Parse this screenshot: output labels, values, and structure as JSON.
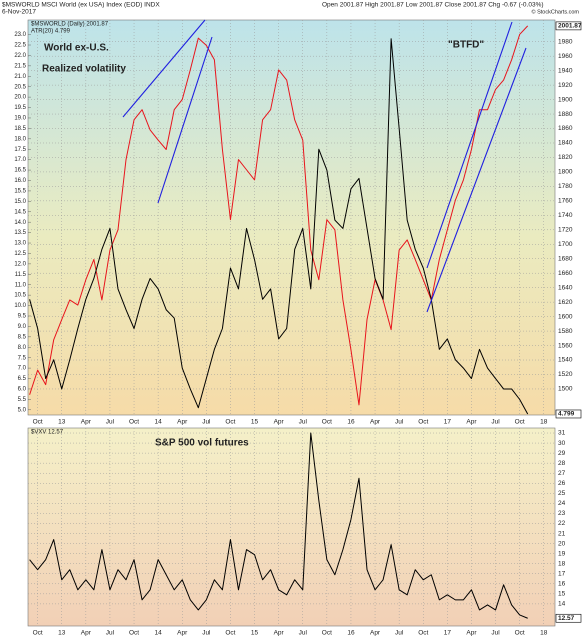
{
  "header": {
    "symbol_line": "$MSWORLD MSCI World (ex USA) Index (EOD) INDX",
    "date": "6-Nov-2017",
    "quote": "Open 2001.87  High 2001.87  Low 2001.87  Close 2001.87  Chg -0.67 (-0.03%)",
    "credit": "© StockCharts.com"
  },
  "chart_data": [
    {
      "type": "line",
      "annotations": [
        {
          "text": "World ex-U.S.",
          "color": "#e8141c"
        },
        {
          "text": "Realized volatility",
          "color": "#000000"
        },
        {
          "text": "\"BTFD\"",
          "color": "#2020e0"
        }
      ],
      "x": [
        0,
        1,
        2,
        3,
        4,
        5,
        6,
        7,
        8,
        9,
        10,
        11,
        12,
        13,
        14,
        15,
        16,
        17,
        18,
        19,
        20,
        21,
        22,
        23,
        24,
        25,
        26,
        27,
        28,
        29,
        30,
        31,
        32,
        33,
        34,
        35,
        36,
        37,
        38,
        39,
        40,
        41,
        42,
        43,
        44,
        45,
        46,
        47,
        48,
        49,
        50,
        51,
        52,
        53,
        54,
        55,
        56,
        57,
        58,
        59,
        60,
        61,
        62
      ],
      "xlim": [
        -0.2,
        65.4
      ],
      "xticks": [
        {
          "value": 1,
          "label": "Oct"
        },
        {
          "value": 4,
          "label": "13"
        },
        {
          "value": 7,
          "label": "Apr"
        },
        {
          "value": 10,
          "label": "Jul"
        },
        {
          "value": 13,
          "label": "Oct"
        },
        {
          "value": 16,
          "label": "14"
        },
        {
          "value": 19,
          "label": "Apr"
        },
        {
          "value": 22,
          "label": "Jul"
        },
        {
          "value": 25,
          "label": "Oct"
        },
        {
          "value": 28,
          "label": "15"
        },
        {
          "value": 31,
          "label": "Apr"
        },
        {
          "value": 34,
          "label": "Jul"
        },
        {
          "value": 37,
          "label": "Oct"
        },
        {
          "value": 40,
          "label": "16"
        },
        {
          "value": 43,
          "label": "Apr"
        },
        {
          "value": 46,
          "label": "Jul"
        },
        {
          "value": 49,
          "label": "Oct"
        },
        {
          "value": 52,
          "label": "17"
        },
        {
          "value": 55,
          "label": "Apr"
        },
        {
          "value": 58,
          "label": "Jul"
        },
        {
          "value": 61,
          "label": "Oct"
        },
        {
          "value": 64,
          "label": "18"
        }
      ],
      "ylim": [
        4.75,
        23.7
      ],
      "yticks": [
        {
          "value": 5,
          "label": "5.0"
        },
        {
          "value": 5.5,
          "label": "5.5"
        },
        {
          "value": 6,
          "label": "6.0"
        },
        {
          "value": 6.5,
          "label": "6.5"
        },
        {
          "value": 7,
          "label": "7.0"
        },
        {
          "value": 7.5,
          "label": "7.5"
        },
        {
          "value": 8,
          "label": "8.0"
        },
        {
          "value": 8.5,
          "label": "8.5"
        },
        {
          "value": 9,
          "label": "9.0"
        },
        {
          "value": 9.5,
          "label": "9.5"
        },
        {
          "value": 10,
          "label": "10.0"
        },
        {
          "value": 10.5,
          "label": "10.5"
        },
        {
          "value": 11,
          "label": "11.0"
        },
        {
          "value": 11.5,
          "label": "11.5"
        },
        {
          "value": 12,
          "label": "12.0"
        },
        {
          "value": 12.5,
          "label": "12.5"
        },
        {
          "value": 13,
          "label": "13.0"
        },
        {
          "value": 13.5,
          "label": "13.5"
        },
        {
          "value": 14,
          "label": "14.0"
        },
        {
          "value": 14.5,
          "label": "14.5"
        },
        {
          "value": 15,
          "label": "15.0"
        },
        {
          "value": 15.5,
          "label": "15.5"
        },
        {
          "value": 16,
          "label": "16.0"
        },
        {
          "value": 16.5,
          "label": "16.5"
        },
        {
          "value": 17,
          "label": "17.0"
        },
        {
          "value": 17.5,
          "label": "17.5"
        },
        {
          "value": 18,
          "label": "18.0"
        },
        {
          "value": 18.5,
          "label": "18.5"
        },
        {
          "value": 19,
          "label": "19.0"
        },
        {
          "value": 19.5,
          "label": "19.5"
        },
        {
          "value": 20,
          "label": "20.0"
        },
        {
          "value": 20.5,
          "label": "20.5"
        },
        {
          "value": 21,
          "label": "21.0"
        },
        {
          "value": 21.5,
          "label": "21.5"
        },
        {
          "value": 22,
          "label": "22.0"
        },
        {
          "value": 22.5,
          "label": "22.5"
        },
        {
          "value": 23,
          "label": "23.0"
        }
      ],
      "y2lim": [
        1464,
        2010
      ],
      "y2ticks": [
        1500,
        1520,
        1540,
        1560,
        1580,
        1600,
        1620,
        1640,
        1660,
        1680,
        1700,
        1720,
        1740,
        1760,
        1780,
        1800,
        1820,
        1840,
        1860,
        1880,
        1900,
        1920,
        1940,
        1960,
        1980
      ],
      "grid": true,
      "series": [
        {
          "name": "$MSWORLD (Daily) 2001.87",
          "color": "#e8141c",
          "axis": "y2",
          "last_value_label": "2001.87",
          "values": [
            1492,
            1526,
            1506,
            1568,
            1596,
            1623,
            1616,
            1651,
            1679,
            1623,
            1692,
            1720,
            1817,
            1872,
            1886,
            1858,
            1844,
            1831,
            1886,
            1900,
            1941,
            1985,
            1975,
            1955,
            1831,
            1734,
            1817,
            1803,
            1789,
            1872,
            1886,
            1941,
            1927,
            1872,
            1844,
            1692,
            1651,
            1734,
            1720,
            1623,
            1554,
            1478,
            1596,
            1651,
            1623,
            1582,
            1692,
            1706,
            1679,
            1651,
            1623,
            1679,
            1720,
            1761,
            1789,
            1831,
            1886,
            1886,
            1914,
            1927,
            1955,
            1990,
            2001.87
          ]
        },
        {
          "name": "ATR(20) 4.799",
          "color": "#000000",
          "last_value_label": "4.799",
          "values": [
            10.3,
            8.9,
            6.5,
            7.4,
            6.0,
            7.4,
            8.9,
            10.3,
            11.3,
            12.7,
            13.7,
            10.8,
            9.8,
            8.9,
            10.3,
            11.3,
            10.8,
            9.8,
            9.4,
            7.0,
            6.0,
            5.1,
            6.5,
            7.9,
            8.9,
            11.8,
            10.8,
            13.7,
            12.2,
            10.3,
            10.8,
            8.4,
            8.9,
            12.7,
            13.7,
            10.8,
            17.5,
            16.5,
            14.1,
            13.7,
            15.6,
            16.1,
            13.7,
            11.3,
            10.3,
            22.8,
            18.5,
            14.1,
            12.7,
            11.8,
            10.3,
            7.9,
            8.4,
            7.4,
            7.0,
            6.5,
            7.9,
            7.0,
            6.5,
            6.0,
            6.0,
            5.5,
            4.799
          ]
        }
      ]
    },
    {
      "type": "line",
      "annotations": [
        {
          "text": "S&P 500 vol futures",
          "color": "#000000"
        }
      ],
      "x": [
        0,
        1,
        2,
        3,
        4,
        5,
        6,
        7,
        8,
        9,
        10,
        11,
        12,
        13,
        14,
        15,
        16,
        17,
        18,
        19,
        20,
        21,
        22,
        23,
        24,
        25,
        26,
        27,
        28,
        29,
        30,
        31,
        32,
        33,
        34,
        35,
        36,
        37,
        38,
        39,
        40,
        41,
        42,
        43,
        44,
        45,
        46,
        47,
        48,
        49,
        50,
        51,
        52,
        53,
        54,
        55,
        56,
        57,
        58,
        59,
        60,
        61,
        62
      ],
      "xlim": [
        -0.2,
        65.4
      ],
      "xticks": [
        {
          "value": 1,
          "label": "Oct"
        },
        {
          "value": 4,
          "label": "13"
        },
        {
          "value": 7,
          "label": "Apr"
        },
        {
          "value": 10,
          "label": "Jul"
        },
        {
          "value": 13,
          "label": "Oct"
        },
        {
          "value": 16,
          "label": "14"
        },
        {
          "value": 19,
          "label": "Apr"
        },
        {
          "value": 22,
          "label": "Jul"
        },
        {
          "value": 25,
          "label": "Oct"
        },
        {
          "value": 28,
          "label": "15"
        },
        {
          "value": 31,
          "label": "Apr"
        },
        {
          "value": 34,
          "label": "Jul"
        },
        {
          "value": 37,
          "label": "Oct"
        },
        {
          "value": 40,
          "label": "16"
        },
        {
          "value": 43,
          "label": "Apr"
        },
        {
          "value": 46,
          "label": "Jul"
        },
        {
          "value": 49,
          "label": "Oct"
        },
        {
          "value": 52,
          "label": "17"
        },
        {
          "value": 55,
          "label": "Apr"
        },
        {
          "value": 58,
          "label": "Jul"
        },
        {
          "value": 61,
          "label": "Oct"
        },
        {
          "value": 64,
          "label": "18"
        }
      ],
      "y2lim": [
        11.8,
        31.5
      ],
      "y2ticks": [
        14,
        15,
        16,
        17,
        18,
        19,
        20,
        21,
        22,
        23,
        24,
        25,
        26,
        27,
        28,
        29,
        30,
        31
      ],
      "grid": true,
      "series": [
        {
          "name": "$VXV 12.57",
          "color": "#000000",
          "axis": "y2",
          "last_value_label": "12.57",
          "values": [
            18.4,
            17.4,
            18.4,
            20.4,
            16.4,
            17.4,
            15.4,
            16.4,
            15.4,
            19.4,
            15.4,
            17.4,
            16.4,
            18.4,
            14.4,
            15.4,
            18.4,
            16.9,
            15.4,
            16.4,
            14.4,
            13.4,
            14.4,
            16.4,
            15.4,
            20.4,
            15.4,
            19.4,
            18.9,
            16.4,
            17.4,
            15.4,
            14.9,
            16.4,
            15.4,
            31.0,
            24.3,
            18.4,
            16.9,
            19.4,
            22.4,
            26.5,
            17.4,
            15.4,
            16.4,
            19.9,
            15.4,
            14.9,
            17.4,
            16.4,
            16.9,
            14.4,
            14.9,
            14.4,
            14.4,
            15.4,
            13.4,
            13.9,
            13.4,
            15.9,
            13.9,
            12.9,
            12.57
          ]
        }
      ]
    }
  ]
}
